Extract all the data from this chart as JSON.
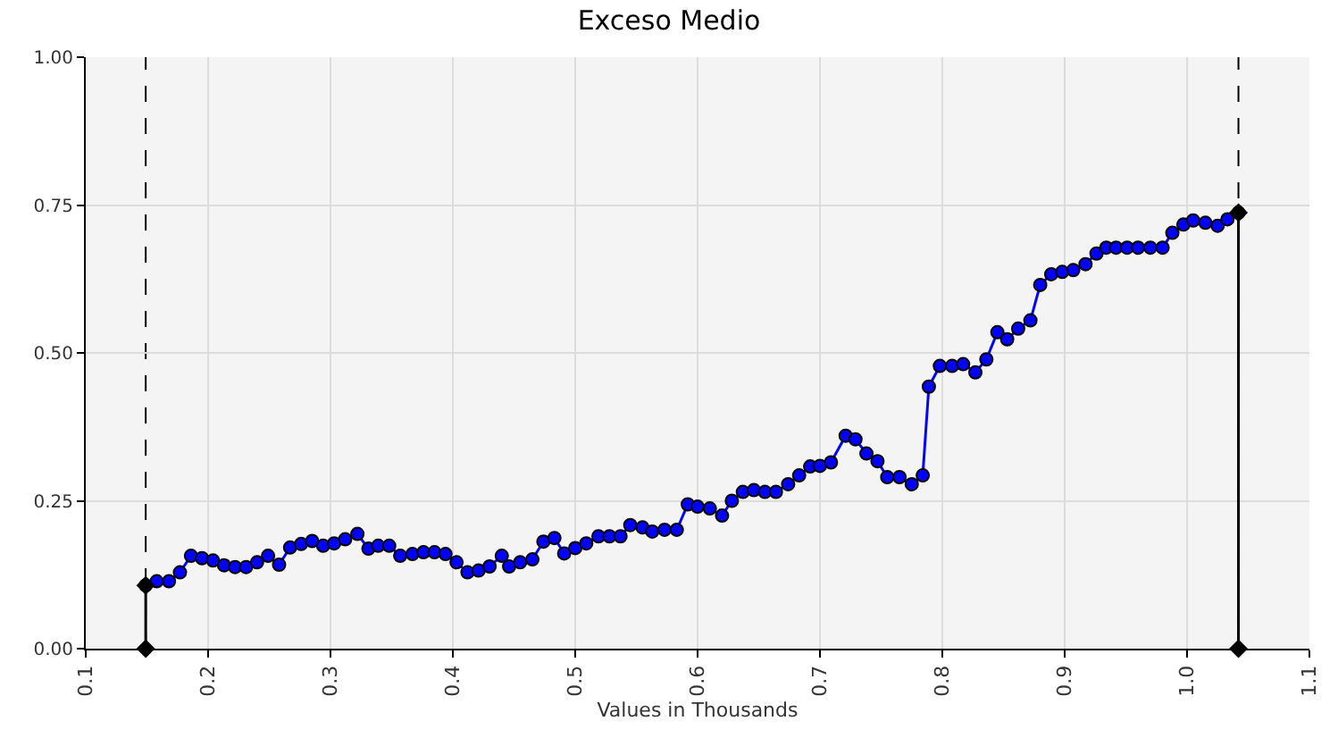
{
  "chart_data": {
    "type": "line",
    "title": "Exceso Medio",
    "xlabel": "Values in Thousands",
    "xlim": [
      0.1,
      1.1
    ],
    "ylim": [
      0,
      1
    ],
    "xticks": [
      0.1,
      0.2,
      0.3,
      0.4,
      0.5,
      0.6,
      0.7,
      0.8,
      0.9,
      {
        "value": 1,
        "label": "1.0"
      },
      1.1
    ],
    "yticks": [
      {
        "value": 0,
        "label": "0.00"
      },
      {
        "value": 0.25,
        "label": "0.25"
      },
      {
        "value": 0.5,
        "label": "0.50"
      },
      {
        "value": 0.75,
        "label": "0.75"
      },
      {
        "value": 1,
        "label": "1.00"
      }
    ],
    "grid": true,
    "line_style": "solid",
    "marker": "circle",
    "ref_lines": [
      {
        "axis": "x",
        "value": 0.149,
        "color": "#000000",
        "line_style": "dashed"
      },
      {
        "axis": "x",
        "value": 1.042,
        "color": "#000000",
        "line_style": "dashed"
      }
    ],
    "series": [
      {
        "color": "#0000ff",
        "x": [
          0.149,
          0.158,
          0.168,
          0.177,
          0.186,
          0.195,
          0.204,
          0.213,
          0.222,
          0.231,
          0.24,
          0.249,
          0.258,
          0.267,
          0.276,
          0.285,
          0.294,
          0.303,
          0.312,
          0.322,
          0.331,
          0.339,
          0.348,
          0.357,
          0.367,
          0.376,
          0.385,
          0.394,
          0.403,
          0.412,
          0.421,
          0.43,
          0.44,
          0.446,
          0.455,
          0.465,
          0.474,
          0.483,
          0.491,
          0.5,
          0.509,
          0.519,
          0.528,
          0.537,
          0.545,
          0.555,
          0.563,
          0.573,
          0.583,
          0.592,
          0.6,
          0.61,
          0.62,
          0.628,
          0.637,
          0.646,
          0.655,
          0.664,
          0.674,
          0.683,
          0.692,
          0.7,
          0.709,
          0.721,
          0.729,
          0.738,
          0.747,
          0.755,
          0.765,
          0.775,
          0.784,
          0.789,
          0.798,
          0.808,
          0.817,
          0.827,
          0.836,
          0.845,
          0.853,
          0.862,
          0.872,
          0.88,
          0.889,
          0.898,
          0.907,
          0.917,
          0.926,
          0.934,
          0.942,
          0.951,
          0.96,
          0.97,
          0.98,
          0.988,
          0.997,
          1.005,
          1.015,
          1.025,
          1.033,
          1.042
        ],
        "values": [
          0.107,
          0.114,
          0.114,
          0.129,
          0.157,
          0.153,
          0.149,
          0.141,
          0.138,
          0.138,
          0.146,
          0.157,
          0.142,
          0.171,
          0.177,
          0.182,
          0.174,
          0.178,
          0.185,
          0.194,
          0.169,
          0.174,
          0.174,
          0.157,
          0.16,
          0.163,
          0.163,
          0.16,
          0.146,
          0.129,
          0.132,
          0.139,
          0.157,
          0.139,
          0.146,
          0.151,
          0.181,
          0.187,
          0.161,
          0.17,
          0.178,
          0.19,
          0.19,
          0.19,
          0.209,
          0.205,
          0.198,
          0.201,
          0.201,
          0.244,
          0.24,
          0.237,
          0.225,
          0.25,
          0.265,
          0.268,
          0.265,
          0.265,
          0.278,
          0.293,
          0.308,
          0.309,
          0.315,
          0.36,
          0.354,
          0.33,
          0.317,
          0.29,
          0.29,
          0.278,
          0.293,
          0.443,
          0.478,
          0.478,
          0.481,
          0.467,
          0.489,
          0.535,
          0.523,
          0.541,
          0.555,
          0.615,
          0.633,
          0.637,
          0.64,
          0.65,
          0.668,
          0.678,
          0.678,
          0.678,
          0.678,
          0.678,
          0.678,
          0.703,
          0.717,
          0.724,
          0.72,
          0.715,
          0.726,
          0.737
        ]
      },
      {
        "color": "#000000",
        "marker": "diamond",
        "x": [
          0.149,
          0.149
        ],
        "values": [
          0,
          0.107
        ]
      },
      {
        "color": "#000000",
        "marker": "diamond",
        "x": [
          1.042,
          1.042
        ],
        "values": [
          0,
          0.737
        ]
      }
    ]
  }
}
